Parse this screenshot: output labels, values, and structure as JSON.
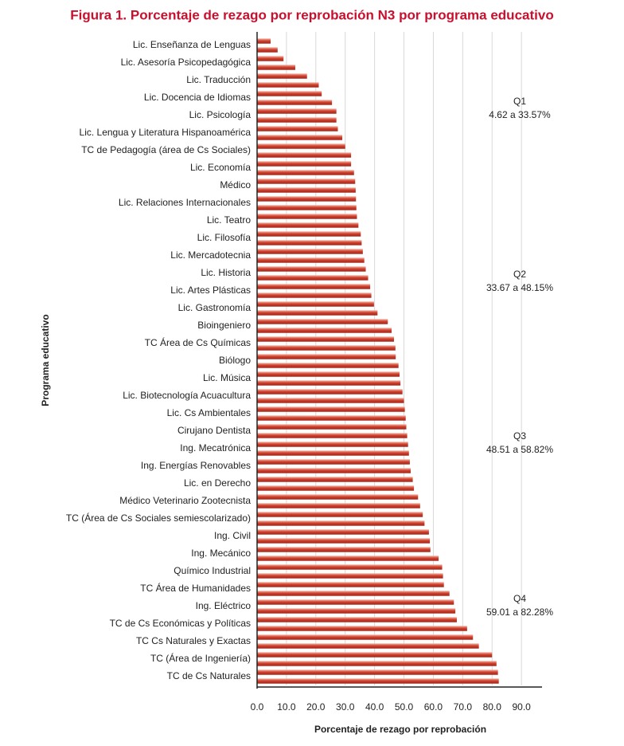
{
  "chart_data": {
    "type": "bar",
    "orientation": "horizontal",
    "title": "Figura 1. Porcentaje de rezago por reprobación N3 por programa educativo",
    "x_label": "Porcentaje de rezago por reprobación",
    "y_label": "Programa educativo",
    "categories": [
      "Lic. Enseñanza de Lenguas",
      null,
      "Lic. Asesoría Psicopedagógica",
      null,
      "Lic. Traducción",
      null,
      "Lic. Docencia de Idiomas",
      null,
      "Lic. Psicología",
      null,
      "Lic. Lengua y Literatura Hispanoamérica",
      null,
      "TC de Pedagogía (área de Cs Sociales)",
      null,
      "Lic. Economía",
      null,
      "Médico",
      null,
      "Lic. Relaciones Internacionales",
      null,
      "Lic. Teatro",
      null,
      "Lic. Filosofía",
      null,
      "Lic. Mercadotecnia",
      null,
      "Lic. Historia",
      null,
      "Lic. Artes Plásticas",
      null,
      "Lic. Gastronomía",
      null,
      "Bioingeniero",
      null,
      "TC Área de Cs Químicas",
      null,
      "Biólogo",
      null,
      "Lic. Música",
      null,
      "Lic. Biotecnología Acuacultura",
      null,
      "Lic. Cs Ambientales",
      null,
      "Cirujano Dentista",
      null,
      "Ing. Mecatrónica",
      null,
      "Ing. Energías Renovables",
      null,
      "Lic. en Derecho",
      null,
      "Médico Veterinario Zootecnista",
      null,
      "TC (Área de Cs Sociales semiescolarizado)",
      null,
      "Ing. Civil",
      null,
      "Ing. Mecánico",
      null,
      "Químico Industrial",
      null,
      "TC Área de Humanidades",
      null,
      "Ing. Eléctrico",
      null,
      "TC de Cs Económicas y Políticas",
      null,
      "TC Cs Naturales y Exactas",
      null,
      "TC (Área de Ingeniería)",
      null,
      "TC de Cs Naturales",
      null
    ],
    "values": [
      4.62,
      7,
      9,
      13,
      17,
      21,
      22,
      25.5,
      27,
      27,
      27.5,
      29,
      30,
      32,
      32,
      33,
      33.4,
      33.57,
      33.67,
      33.8,
      34,
      34.5,
      35.3,
      35.6,
      36,
      36.5,
      37,
      37.8,
      38.5,
      38.9,
      39.8,
      41,
      44.5,
      45.8,
      46.6,
      47.1,
      47.2,
      48.15,
      48.51,
      48.8,
      49.5,
      50,
      50.3,
      50.6,
      50.8,
      51.1,
      51.4,
      51.7,
      52,
      52.3,
      53,
      53.4,
      54.8,
      55.5,
      56.4,
      57,
      58.5,
      58.82,
      59.01,
      61.8,
      63,
      63.3,
      63.6,
      65.5,
      67,
      67.5,
      68,
      71.5,
      73.5,
      75.5,
      80,
      81.5,
      82,
      82.28
    ],
    "color": "#c0392b",
    "xlim": [
      0,
      97
    ],
    "xticks": [
      {
        "value": 0,
        "label": "0.0"
      },
      {
        "value": 10,
        "label": "10.0"
      },
      {
        "value": 20,
        "label": "20.0"
      },
      {
        "value": 30,
        "label": "30.0"
      },
      {
        "value": 40,
        "label": "40.0"
      },
      {
        "value": 50,
        "label": "50.0"
      },
      {
        "value": 60,
        "label": "60.0"
      },
      {
        "value": 70,
        "label": "70.0"
      },
      {
        "value": 80,
        "label": "80.0"
      },
      {
        "value": 90,
        "label": "90.0"
      }
    ],
    "grid": true,
    "annotations": [
      {
        "title": "Q1",
        "text": "4.62 a 33.57%"
      },
      {
        "title": "Q2",
        "text": "33.67 a 48.15%"
      },
      {
        "title": "Q3",
        "text": "48.51 a 58.82%"
      },
      {
        "title": "Q4",
        "text": "59.01 a 82.28%"
      }
    ]
  }
}
